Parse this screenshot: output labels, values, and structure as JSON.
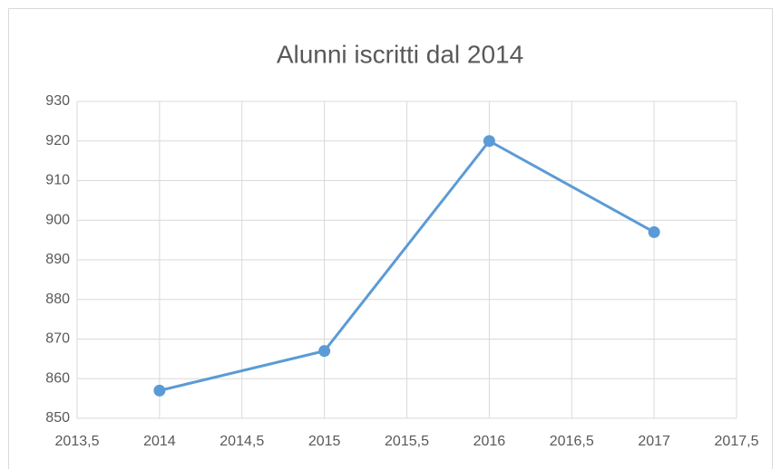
{
  "chart_data": {
    "type": "line",
    "title": "Alunni iscritti dal 2014",
    "x": [
      2014,
      2015,
      2016,
      2017
    ],
    "values": [
      857,
      867,
      920,
      897
    ],
    "color": "#5b9bd5",
    "xlim": [
      2013.5,
      2017.5
    ],
    "xticks": [
      {
        "value": 2013.5,
        "label": "2013,5"
      },
      2014,
      {
        "value": 2014.5,
        "label": "2014,5"
      },
      2015,
      {
        "value": 2015.5,
        "label": "2015,5"
      },
      2016,
      {
        "value": 2016.5,
        "label": "2016,5"
      },
      2017,
      {
        "value": 2017.5,
        "label": "2017,5"
      }
    ],
    "ylim": [
      850,
      930
    ],
    "yticks": [
      850,
      860,
      870,
      880,
      890,
      900,
      910,
      920,
      930
    ],
    "grid": true
  }
}
